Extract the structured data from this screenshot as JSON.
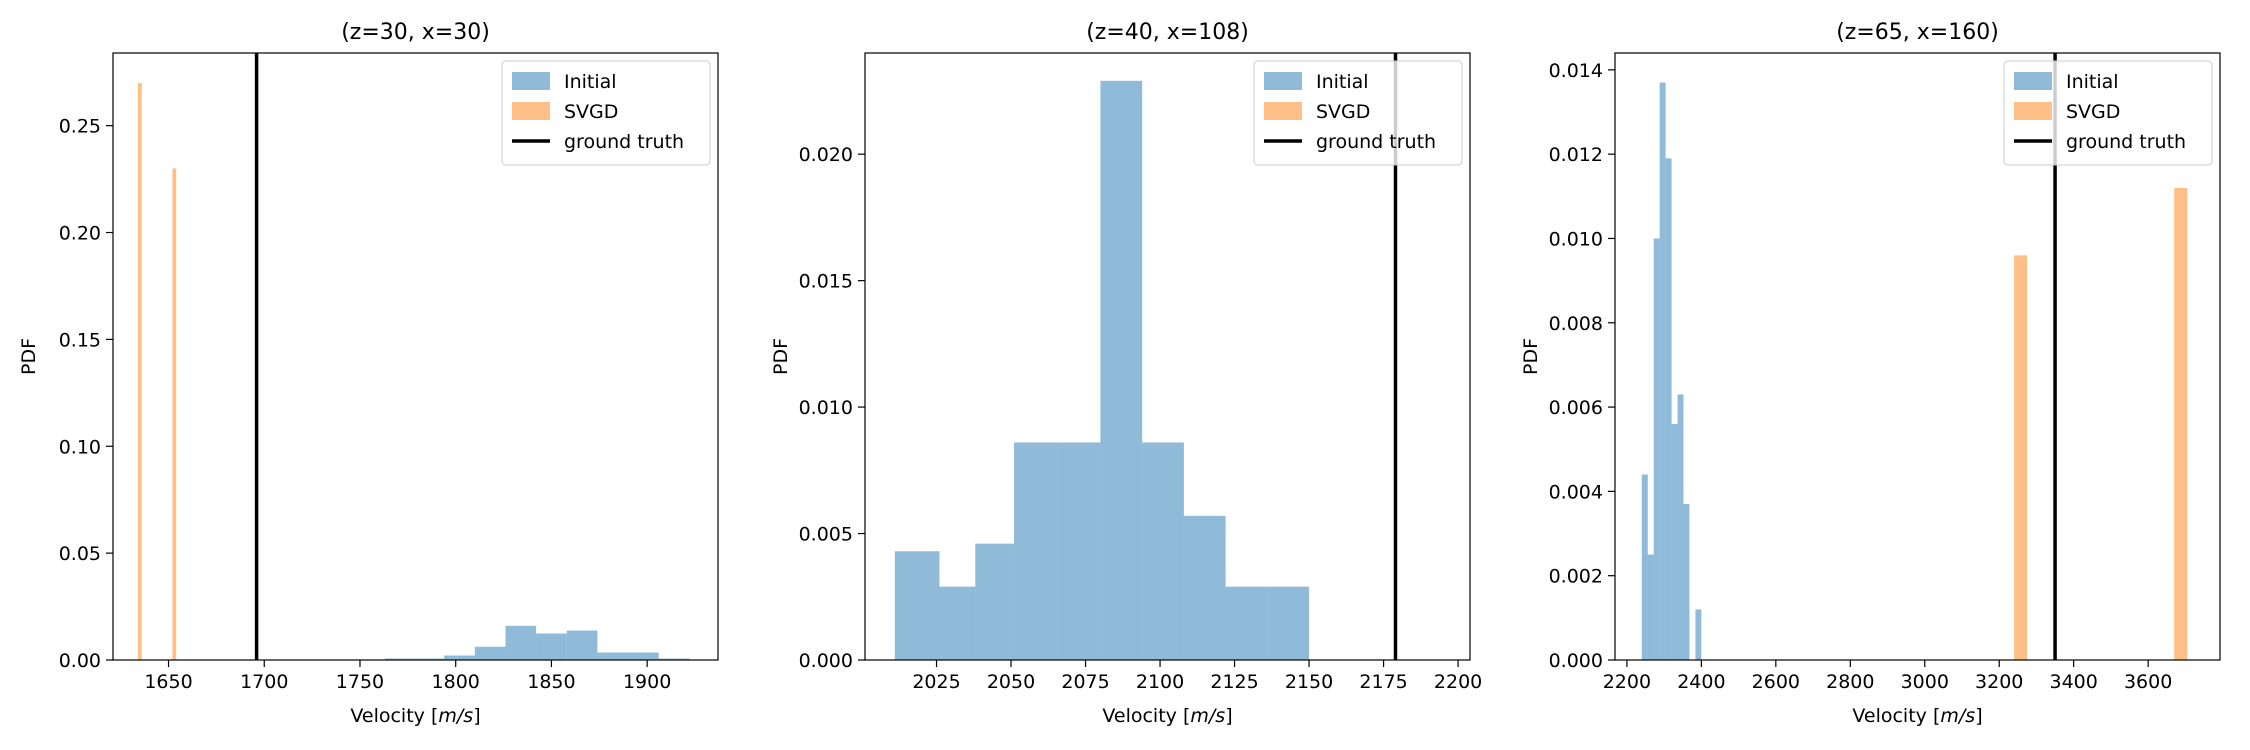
{
  "colors": {
    "initial": "#1f77b4",
    "svgd": "#ff7f0e",
    "ground_truth": "#000000"
  },
  "chart_data": [
    {
      "type": "bar",
      "title": "(z=30, x=30)",
      "xlabel_prefix": "Velocity [",
      "xlabel_unit": "m/s",
      "xlabel_suffix": "]",
      "ylabel": "PDF",
      "xlim": [
        1621,
        1937
      ],
      "ylim": [
        0,
        0.284
      ],
      "xticks": [
        1650,
        1700,
        1750,
        1800,
        1850,
        1900
      ],
      "yticks": [
        0.0,
        0.05,
        0.1,
        0.15,
        0.2,
        0.25
      ],
      "ytick_labels": [
        "0.00",
        "0.05",
        "0.10",
        "0.15",
        "0.20",
        "0.25"
      ],
      "legend_position": "top-right",
      "legend": [
        "Initial",
        "SVGD",
        "ground truth"
      ],
      "ground_truth": 1696,
      "series": [
        {
          "name": "Initial",
          "alpha": 0.5,
          "bins": [
            {
              "x0": 1763,
              "x1": 1778,
              "y": 0.0007
            },
            {
              "x0": 1778,
              "x1": 1794,
              "y": 0.0007
            },
            {
              "x0": 1794,
              "x1": 1810,
              "y": 0.0021
            },
            {
              "x0": 1810,
              "x1": 1826,
              "y": 0.0062
            },
            {
              "x0": 1826,
              "x1": 1842,
              "y": 0.016
            },
            {
              "x0": 1842,
              "x1": 1858,
              "y": 0.0124
            },
            {
              "x0": 1858,
              "x1": 1874,
              "y": 0.0138
            },
            {
              "x0": 1874,
              "x1": 1890,
              "y": 0.0035
            },
            {
              "x0": 1890,
              "x1": 1906,
              "y": 0.0035
            },
            {
              "x0": 1906,
              "x1": 1922,
              "y": 0.0007
            }
          ]
        },
        {
          "name": "SVGD",
          "alpha": 0.5,
          "bins": [
            {
              "x0": 1634,
              "x1": 1636,
              "y": 0.27
            },
            {
              "x0": 1652,
              "x1": 1654,
              "y": 0.23
            }
          ]
        }
      ]
    },
    {
      "type": "bar",
      "title": "(z=40, x=108)",
      "xlabel_prefix": "Velocity [",
      "xlabel_unit": "m/s",
      "xlabel_suffix": "]",
      "ylabel": "PDF",
      "xlim": [
        2001,
        2204
      ],
      "ylim": [
        0,
        0.024
      ],
      "xticks": [
        2025,
        2050,
        2075,
        2100,
        2125,
        2150,
        2175,
        2200
      ],
      "yticks": [
        0.0,
        0.005,
        0.01,
        0.015,
        0.02
      ],
      "ytick_labels": [
        "0.000",
        "0.005",
        "0.010",
        "0.015",
        "0.020"
      ],
      "legend_position": "top-right",
      "legend": [
        "Initial",
        "SVGD",
        "ground truth"
      ],
      "ground_truth": 2179,
      "series": [
        {
          "name": "Initial",
          "alpha": 0.5,
          "bins": [
            {
              "x0": 2011,
              "x1": 2026,
              "y": 0.0043
            },
            {
              "x0": 2026,
              "x1": 2038,
              "y": 0.0029
            },
            {
              "x0": 2038,
              "x1": 2051,
              "y": 0.0046
            },
            {
              "x0": 2051,
              "x1": 2066,
              "y": 0.0086
            },
            {
              "x0": 2066,
              "x1": 2080,
              "y": 0.0086
            },
            {
              "x0": 2080,
              "x1": 2094,
              "y": 0.0229
            },
            {
              "x0": 2094,
              "x1": 2108,
              "y": 0.0086
            },
            {
              "x0": 2108,
              "x1": 2122,
              "y": 0.0057
            },
            {
              "x0": 2122,
              "x1": 2136,
              "y": 0.0029
            },
            {
              "x0": 2136,
              "x1": 2150,
              "y": 0.0029
            }
          ]
        },
        {
          "name": "SVGD",
          "alpha": 0.5,
          "bins": []
        }
      ]
    },
    {
      "type": "bar",
      "title": "(z=65, x=160)",
      "xlabel_prefix": "Velocity [",
      "xlabel_unit": "m/s",
      "xlabel_suffix": "]",
      "ylabel": "PDF",
      "xlim": [
        2168,
        3793
      ],
      "ylim": [
        0,
        0.0144
      ],
      "xticks": [
        2200,
        2400,
        2600,
        2800,
        3000,
        3200,
        3400,
        3600
      ],
      "yticks": [
        0.0,
        0.002,
        0.004,
        0.006,
        0.008,
        0.01,
        0.012,
        0.014
      ],
      "ytick_labels": [
        "0.000",
        "0.002",
        "0.004",
        "0.006",
        "0.008",
        "0.010",
        "0.012",
        "0.014"
      ],
      "legend_position": "top-right",
      "legend": [
        "Initial",
        "SVGD",
        "ground truth"
      ],
      "ground_truth": 3350,
      "series": [
        {
          "name": "Initial",
          "alpha": 0.5,
          "bins": [
            {
              "x0": 2240,
              "x1": 2256,
              "y": 0.0044
            },
            {
              "x0": 2256,
              "x1": 2272,
              "y": 0.0025
            },
            {
              "x0": 2272,
              "x1": 2288,
              "y": 0.01
            },
            {
              "x0": 2288,
              "x1": 2304,
              "y": 0.0137
            },
            {
              "x0": 2304,
              "x1": 2320,
              "y": 0.0119
            },
            {
              "x0": 2320,
              "x1": 2336,
              "y": 0.0056
            },
            {
              "x0": 2336,
              "x1": 2352,
              "y": 0.0063
            },
            {
              "x0": 2352,
              "x1": 2368,
              "y": 0.0037
            },
            {
              "x0": 2368,
              "x1": 2384,
              "y": 0.0
            },
            {
              "x0": 2384,
              "x1": 2400,
              "y": 0.0012
            }
          ]
        },
        {
          "name": "SVGD",
          "alpha": 0.5,
          "bins": [
            {
              "x0": 3240,
              "x1": 3275,
              "y": 0.0096
            },
            {
              "x0": 3670,
              "x1": 3705,
              "y": 0.0112
            }
          ]
        }
      ]
    }
  ]
}
